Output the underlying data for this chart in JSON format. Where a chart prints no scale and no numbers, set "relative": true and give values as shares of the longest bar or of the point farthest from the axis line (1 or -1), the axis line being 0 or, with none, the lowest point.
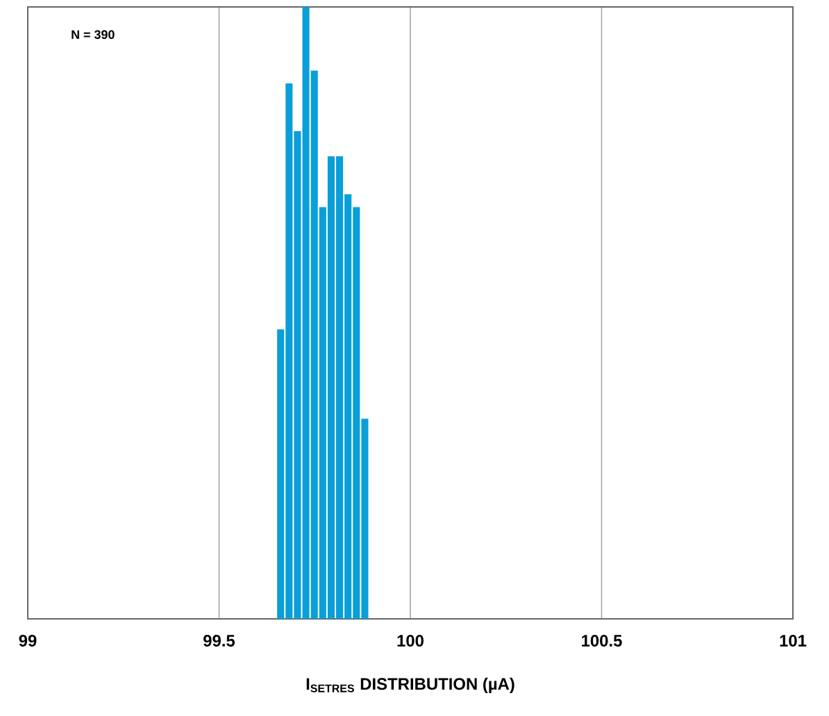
{
  "chart_data": {
    "type": "bar",
    "xlabel": "I$_{SETRES}$ DISTRIBUTION (µA)",
    "annotations": [
      "N = 390"
    ],
    "x": [
      99.661,
      99.683,
      99.705,
      99.727,
      99.749,
      99.771,
      99.793,
      99.815,
      99.837,
      99.859,
      99.881
    ],
    "values": [
      0.473,
      0.875,
      0.797,
      1.0,
      0.896,
      0.673,
      0.756,
      0.756,
      0.694,
      0.673,
      0.327
    ],
    "color": "#0a9fd8",
    "relative": true,
    "xlim": [
      99,
      101
    ],
    "xticks": [
      {
        "value": 99,
        "label": "99"
      },
      {
        "value": 99.5,
        "label": "99.5"
      },
      {
        "value": 100,
        "label": "100"
      },
      {
        "value": 100.5,
        "label": "100.5"
      },
      {
        "value": 101,
        "label": "101"
      }
    ],
    "grid": "x"
  }
}
